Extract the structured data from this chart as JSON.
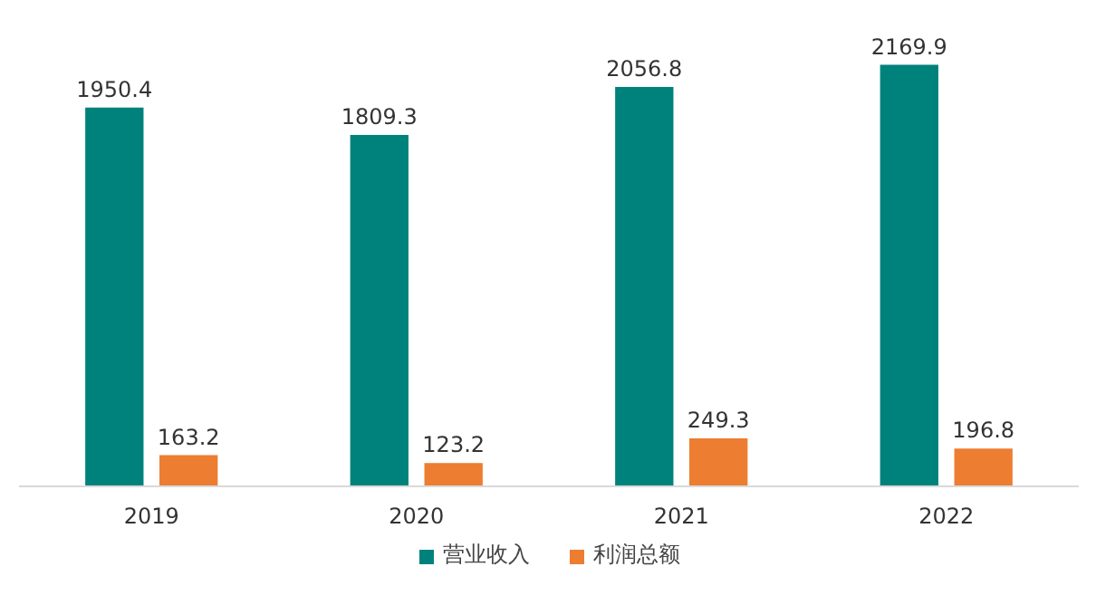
{
  "chart_data": {
    "type": "bar",
    "categories": [
      "2019",
      "2020",
      "2021",
      "2022"
    ],
    "series": [
      {
        "name": "营业收入",
        "color": "#00827c",
        "values": [
          1950.4,
          1809.3,
          2056.8,
          2169.9
        ]
      },
      {
        "name": "利润总额",
        "color": "#ed7d31",
        "values": [
          163.2,
          123.2,
          249.3,
          196.8
        ]
      }
    ],
    "data_labels": true,
    "legend": "bottom",
    "grid": false
  }
}
